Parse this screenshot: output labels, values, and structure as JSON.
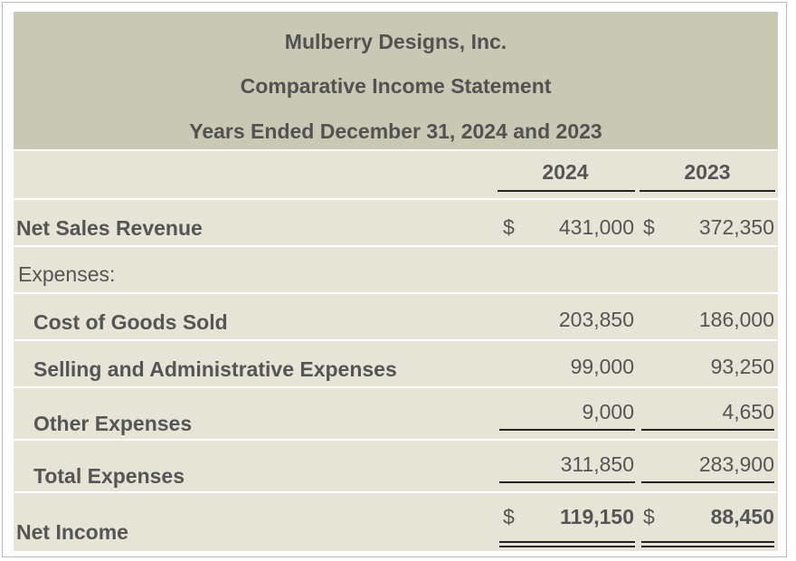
{
  "statement": {
    "company": "Mulberry Designs, Inc.",
    "title": "Comparative Income Statement",
    "period": "Years Ended December 31, 2024 and 2023"
  },
  "columns": {
    "current": "2024",
    "prior": "2023"
  },
  "rows": {
    "net_sales": {
      "label": "Net Sales Revenue",
      "cur_symbol": "$",
      "current": "431,000",
      "prior_symbol": "$",
      "prior": "372,350"
    },
    "expenses_header": {
      "label": "Expenses:"
    },
    "cogs": {
      "label": "Cost of Goods Sold",
      "current": "203,850",
      "prior": "186,000"
    },
    "selling_admin": {
      "label": "Selling and Administrative Expenses",
      "current": "99,000",
      "prior": "93,250"
    },
    "other": {
      "label": "Other Expenses",
      "current": "9,000",
      "prior": "4,650"
    },
    "total": {
      "label": "Total Expenses",
      "current": "311,850",
      "prior": "283,900"
    },
    "net_income": {
      "label": "Net Income",
      "cur_symbol": "$",
      "current": "119,150",
      "prior_symbol": "$",
      "prior": "88,450"
    }
  }
}
